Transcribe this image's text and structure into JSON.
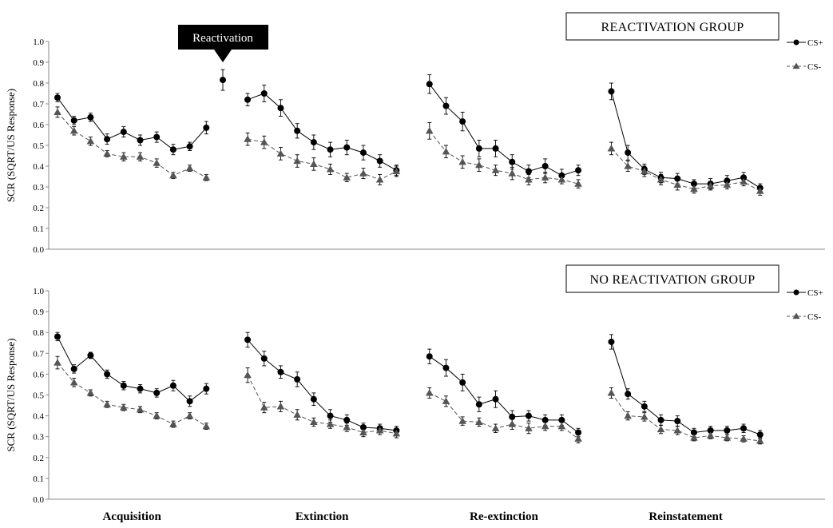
{
  "figure": {
    "callout": {
      "label": "Reactivation",
      "color": "#000000"
    },
    "legend": [
      {
        "name": "CS+",
        "marker": "circle",
        "line": "solid"
      },
      {
        "name": "CS-",
        "marker": "triangle",
        "line": "dashed"
      }
    ],
    "phase_labels": [
      "Acquisition",
      "Extinction",
      "Re-extinction",
      "Reinstatement"
    ],
    "colors": {
      "ink": "#000000",
      "cs_plus_line": "#000000",
      "cs_minus_line": "#555555",
      "cs_minus_marker": "#555555"
    }
  },
  "chart_data": [
    {
      "type": "line",
      "title": "REACTIVATION GROUP",
      "ylabel": "SCR (SQRT/US Response)",
      "ylim": [
        0,
        1
      ],
      "yticks": [
        "0.0",
        "0.1",
        "0.2",
        "0.3",
        "0.4",
        "0.5",
        "0.6",
        "0.7",
        "0.8",
        "0.9",
        "1.0"
      ],
      "grid": false,
      "legend_position": "right",
      "phases": [
        {
          "name": "Acquisition",
          "trials": 10,
          "series": [
            {
              "name": "CS+",
              "values": [
                0.73,
                0.62,
                0.635,
                0.53,
                0.565,
                0.525,
                0.54,
                0.48,
                0.495,
                0.585
              ],
              "errors": [
                0.02,
                0.02,
                0.02,
                0.025,
                0.025,
                0.025,
                0.025,
                0.025,
                0.02,
                0.03
              ]
            },
            {
              "name": "CS-",
              "values": [
                0.66,
                0.57,
                0.52,
                0.46,
                0.445,
                0.445,
                0.415,
                0.355,
                0.39,
                0.345
              ],
              "errors": [
                0.025,
                0.02,
                0.02,
                0.015,
                0.02,
                0.02,
                0.02,
                0.015,
                0.015,
                0.015
              ]
            }
          ]
        },
        {
          "name": "Reactivation",
          "trials": 1,
          "series": [
            {
              "name": "CS+",
              "values": [
                0.815
              ],
              "errors": [
                0.05
              ]
            }
          ]
        },
        {
          "name": "Extinction",
          "trials": 10,
          "series": [
            {
              "name": "CS+",
              "values": [
                0.72,
                0.75,
                0.68,
                0.57,
                0.515,
                0.48,
                0.49,
                0.465,
                0.425,
                0.38
              ],
              "errors": [
                0.03,
                0.04,
                0.04,
                0.035,
                0.035,
                0.035,
                0.035,
                0.035,
                0.03,
                0.025
              ]
            },
            {
              "name": "CS-",
              "values": [
                0.53,
                0.515,
                0.46,
                0.425,
                0.41,
                0.385,
                0.345,
                0.365,
                0.335,
                0.375
              ],
              "errors": [
                0.03,
                0.03,
                0.03,
                0.03,
                0.03,
                0.025,
                0.02,
                0.025,
                0.025,
                0.025
              ]
            }
          ]
        },
        {
          "name": "Re-extinction",
          "trials": 10,
          "series": [
            {
              "name": "CS+",
              "values": [
                0.795,
                0.69,
                0.615,
                0.485,
                0.485,
                0.42,
                0.375,
                0.4,
                0.355,
                0.38
              ],
              "errors": [
                0.045,
                0.04,
                0.045,
                0.04,
                0.04,
                0.035,
                0.03,
                0.035,
                0.03,
                0.025
              ]
            },
            {
              "name": "CS-",
              "values": [
                0.57,
                0.47,
                0.42,
                0.405,
                0.38,
                0.365,
                0.335,
                0.345,
                0.335,
                0.315
              ],
              "errors": [
                0.04,
                0.03,
                0.03,
                0.03,
                0.025,
                0.03,
                0.025,
                0.025,
                0.02,
                0.02
              ]
            }
          ]
        },
        {
          "name": "Reinstatement",
          "trials": 10,
          "series": [
            {
              "name": "CS+",
              "values": [
                0.76,
                0.465,
                0.385,
                0.345,
                0.34,
                0.315,
                0.315,
                0.33,
                0.345,
                0.295
              ],
              "errors": [
                0.04,
                0.035,
                0.025,
                0.025,
                0.025,
                0.02,
                0.025,
                0.025,
                0.025,
                0.02
              ]
            },
            {
              "name": "CS-",
              "values": [
                0.485,
                0.4,
                0.375,
                0.335,
                0.31,
                0.29,
                0.305,
                0.31,
                0.325,
                0.28
              ],
              "errors": [
                0.03,
                0.025,
                0.025,
                0.025,
                0.025,
                0.02,
                0.02,
                0.02,
                0.02,
                0.02
              ]
            }
          ]
        }
      ]
    },
    {
      "type": "line",
      "title": "NO REACTIVATION GROUP",
      "ylabel": "SCR (SQRT/US Response)",
      "ylim": [
        0,
        1
      ],
      "yticks": [
        "0.0",
        "0.1",
        "0.2",
        "0.3",
        "0.4",
        "0.5",
        "0.6",
        "0.7",
        "0.8",
        "0.9",
        "1.0"
      ],
      "grid": false,
      "legend_position": "right",
      "phases": [
        {
          "name": "Acquisition",
          "trials": 10,
          "series": [
            {
              "name": "CS+",
              "values": [
                0.78,
                0.625,
                0.69,
                0.6,
                0.545,
                0.53,
                0.51,
                0.545,
                0.47,
                0.53
              ],
              "errors": [
                0.02,
                0.02,
                0.015,
                0.02,
                0.02,
                0.02,
                0.02,
                0.025,
                0.025,
                0.025
              ]
            },
            {
              "name": "CS-",
              "values": [
                0.655,
                0.56,
                0.51,
                0.455,
                0.44,
                0.43,
                0.4,
                0.36,
                0.4,
                0.35
              ],
              "errors": [
                0.03,
                0.02,
                0.015,
                0.015,
                0.015,
                0.015,
                0.015,
                0.015,
                0.015,
                0.015
              ]
            }
          ]
        },
        {
          "name": "Extinction",
          "trials": 10,
          "series": [
            {
              "name": "CS+",
              "values": [
                0.765,
                0.675,
                0.61,
                0.575,
                0.48,
                0.4,
                0.38,
                0.345,
                0.34,
                0.33
              ],
              "errors": [
                0.035,
                0.035,
                0.03,
                0.035,
                0.03,
                0.03,
                0.025,
                0.02,
                0.02,
                0.02
              ]
            },
            {
              "name": "CS-",
              "values": [
                0.595,
                0.44,
                0.445,
                0.405,
                0.37,
                0.36,
                0.345,
                0.32,
                0.33,
                0.315
              ],
              "errors": [
                0.035,
                0.025,
                0.025,
                0.025,
                0.02,
                0.02,
                0.02,
                0.02,
                0.02,
                0.02
              ]
            }
          ]
        },
        {
          "name": "Re-extinction",
          "trials": 10,
          "series": [
            {
              "name": "CS+",
              "values": [
                0.685,
                0.63,
                0.56,
                0.455,
                0.48,
                0.395,
                0.4,
                0.38,
                0.38,
                0.32
              ],
              "errors": [
                0.035,
                0.04,
                0.04,
                0.035,
                0.04,
                0.03,
                0.025,
                0.025,
                0.025,
                0.02
              ]
            },
            {
              "name": "CS-",
              "values": [
                0.51,
                0.47,
                0.375,
                0.37,
                0.34,
                0.36,
                0.34,
                0.35,
                0.35,
                0.29
              ],
              "errors": [
                0.025,
                0.025,
                0.02,
                0.02,
                0.02,
                0.025,
                0.025,
                0.02,
                0.02,
                0.02
              ]
            }
          ]
        },
        {
          "name": "Reinstatement",
          "trials": 10,
          "series": [
            {
              "name": "CS+",
              "values": [
                0.755,
                0.505,
                0.445,
                0.38,
                0.375,
                0.32,
                0.33,
                0.33,
                0.34,
                0.31
              ],
              "errors": [
                0.035,
                0.025,
                0.025,
                0.025,
                0.025,
                0.02,
                0.02,
                0.02,
                0.02,
                0.02
              ]
            },
            {
              "name": "CS-",
              "values": [
                0.51,
                0.4,
                0.395,
                0.335,
                0.33,
                0.295,
                0.305,
                0.295,
                0.29,
                0.28
              ],
              "errors": [
                0.025,
                0.02,
                0.02,
                0.02,
                0.02,
                0.015,
                0.015,
                0.015,
                0.015,
                0.015
              ]
            }
          ]
        }
      ]
    }
  ]
}
